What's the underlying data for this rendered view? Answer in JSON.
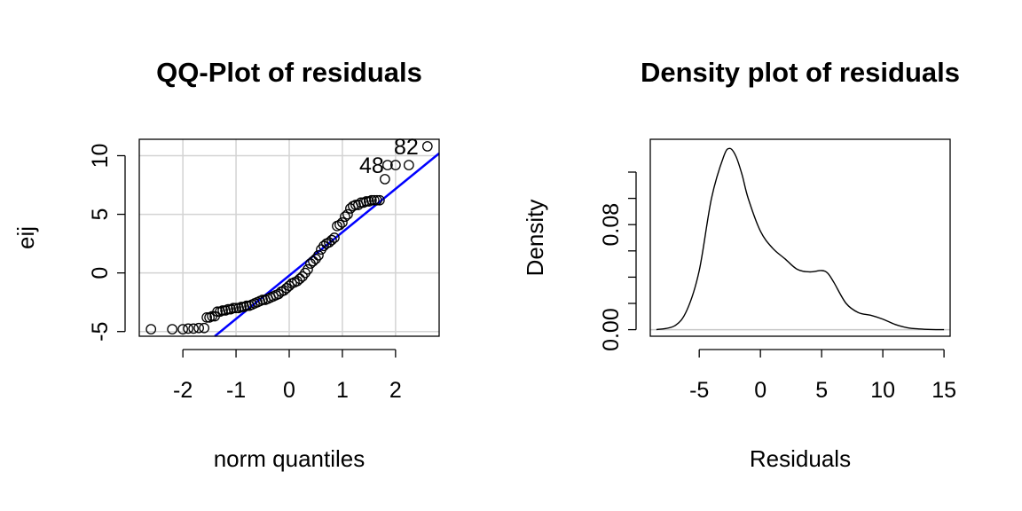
{
  "chart_data": [
    {
      "type": "scatter",
      "title": "QQ-Plot of residuals",
      "xlabel": "norm quantiles",
      "ylabel": "eij",
      "xlim": [
        -2.82,
        2.82
      ],
      "ylim": [
        -5.4,
        11.4
      ],
      "xticks": [
        -2,
        -1,
        0,
        1,
        2
      ],
      "yticks": [
        -5,
        0,
        5,
        10
      ],
      "grid": true,
      "reference_line": {
        "color": "#0000ff",
        "points": [
          [
            -1.4,
            -5.4
          ],
          [
            2.82,
            10.2
          ]
        ]
      },
      "annotations": [
        {
          "text": "82",
          "x": 2.2,
          "y": 10.8
        },
        {
          "text": "48",
          "x": 1.55,
          "y": 9.2
        }
      ],
      "series": [
        {
          "x": [
            -2.6,
            -2.2,
            -2.0,
            -1.9,
            -1.8,
            -1.7,
            -1.6,
            -1.55,
            -1.5,
            -1.45,
            -1.4,
            -1.35,
            -1.3,
            -1.25,
            -1.2,
            -1.15,
            -1.1,
            -1.05,
            -1.0,
            -0.95,
            -0.9,
            -0.85,
            -0.8,
            -0.75,
            -0.7,
            -0.65,
            -0.6,
            -0.55,
            -0.5,
            -0.45,
            -0.4,
            -0.35,
            -0.3,
            -0.25,
            -0.2,
            -0.15,
            -0.1,
            -0.05,
            0.0,
            0.05,
            0.1,
            0.15,
            0.2,
            0.25,
            0.3,
            0.35,
            0.4,
            0.45,
            0.5,
            0.55,
            0.6,
            0.65,
            0.7,
            0.75,
            0.8,
            0.85,
            0.9,
            0.95,
            1.0,
            1.05,
            1.1,
            1.15,
            1.2,
            1.25,
            1.3,
            1.35,
            1.4,
            1.45,
            1.5,
            1.55,
            1.6,
            1.65,
            1.7,
            1.8,
            1.85,
            2.0,
            2.25,
            2.6
          ],
          "y": [
            -4.8,
            -4.8,
            -4.8,
            -4.75,
            -4.75,
            -4.7,
            -4.7,
            -3.8,
            -3.8,
            -3.7,
            -3.7,
            -3.3,
            -3.3,
            -3.2,
            -3.2,
            -3.1,
            -3.1,
            -3.0,
            -3.0,
            -3.0,
            -2.9,
            -2.9,
            -2.8,
            -2.8,
            -2.7,
            -2.6,
            -2.5,
            -2.4,
            -2.3,
            -2.3,
            -2.2,
            -2.1,
            -2.0,
            -1.9,
            -1.8,
            -1.6,
            -1.5,
            -1.3,
            -1.1,
            -0.9,
            -0.8,
            -0.7,
            -0.5,
            -0.3,
            0.0,
            0.3,
            0.8,
            1.0,
            1.2,
            1.5,
            2.0,
            2.3,
            2.5,
            2.6,
            2.8,
            3.0,
            4.0,
            4.1,
            4.3,
            4.8,
            5.0,
            5.5,
            5.7,
            5.8,
            5.8,
            6.0,
            6.0,
            6.1,
            6.1,
            6.2,
            6.2,
            6.2,
            6.2,
            8.0,
            9.2,
            9.2,
            9.2,
            10.8
          ]
        }
      ]
    },
    {
      "type": "line",
      "title": "Density plot of residuals",
      "xlabel": "Residuals",
      "ylabel": "Density",
      "xlim": [
        -9.0,
        15.5
      ],
      "ylim": [
        -0.005,
        0.145
      ],
      "xticks": [
        -5,
        0,
        5,
        10,
        15
      ],
      "yticks": [
        0.0,
        0.02,
        0.04,
        0.06,
        0.08,
        0.1,
        0.12
      ],
      "ytick_labels": [
        "0.00",
        "",
        "",
        "",
        "0.08",
        "",
        ""
      ],
      "baseline": 0.0,
      "series": [
        {
          "x": [
            -8.5,
            -7.0,
            -6.0,
            -5.0,
            -4.0,
            -3.0,
            -2.5,
            -2.0,
            -1.5,
            -1.0,
            0.0,
            1.0,
            2.0,
            3.0,
            4.0,
            5.0,
            5.5,
            6.0,
            7.0,
            8.0,
            9.0,
            10.0,
            11.0,
            12.0,
            13.0,
            14.0,
            15.0
          ],
          "y": [
            0.0,
            0.003,
            0.015,
            0.045,
            0.1,
            0.132,
            0.138,
            0.132,
            0.118,
            0.1,
            0.075,
            0.062,
            0.054,
            0.046,
            0.044,
            0.045,
            0.043,
            0.036,
            0.02,
            0.013,
            0.011,
            0.008,
            0.004,
            0.0015,
            0.0005,
            0.0001,
            0.0
          ]
        }
      ]
    }
  ]
}
